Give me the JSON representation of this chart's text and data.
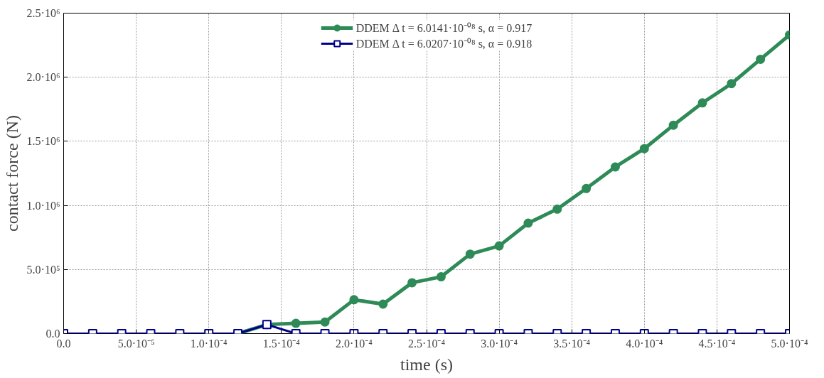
{
  "chart_data": {
    "type": "line",
    "xlabel": "time (s)",
    "ylabel": "contact force (N)",
    "x": [
      0,
      2e-05,
      4e-05,
      6e-05,
      8e-05,
      0.0001,
      0.00012,
      0.00014,
      0.00016,
      0.00018,
      0.0002,
      0.00022,
      0.00024,
      0.00026,
      0.00028,
      0.0003,
      0.00032,
      0.00034,
      0.00036,
      0.00038,
      0.0004,
      0.00042,
      0.00044,
      0.00046,
      0.00048,
      0.0005
    ],
    "series": [
      {
        "name": "DDEM Δ t = 6.0141·10⁻⁰⁸ s, α = 0.917",
        "color": "#2e8b57",
        "marker": "circle",
        "values": [
          null,
          null,
          null,
          null,
          null,
          null,
          0,
          70000,
          80000,
          90000,
          264000,
          230000,
          397000,
          443000,
          620000,
          684000,
          862000,
          971000,
          1132000,
          1300000,
          1443000,
          1626000,
          1800000,
          1950000,
          2140000,
          2330000
        ]
      },
      {
        "name": "DDEM Δ t = 6.0207·10⁻⁰⁸ s, α = 0.918",
        "color": "#00008b",
        "marker": "square",
        "values": [
          0,
          0,
          0,
          0,
          0,
          0,
          0,
          70000,
          0,
          0,
          0,
          0,
          0,
          0,
          0,
          0,
          0,
          0,
          0,
          0,
          0,
          0,
          0,
          0,
          0,
          0
        ]
      }
    ],
    "xlim": [
      0,
      0.0005
    ],
    "xticks": [
      {
        "value": 0,
        "label": "0.0"
      },
      {
        "value": 5e-05,
        "label": "5.0·10⁻⁵"
      },
      {
        "value": 0.0001,
        "label": "1.0·10⁻⁴"
      },
      {
        "value": 0.00015,
        "label": "1.5·10⁻⁴"
      },
      {
        "value": 0.0002,
        "label": "2.0·10⁻⁴"
      },
      {
        "value": 0.00025,
        "label": "2.5·10⁻⁴"
      },
      {
        "value": 0.0003,
        "label": "3.0·10⁻⁴"
      },
      {
        "value": 0.00035,
        "label": "3.5·10⁻⁴"
      },
      {
        "value": 0.0004,
        "label": "4.0·10⁻⁴"
      },
      {
        "value": 0.00045,
        "label": "4.5·10⁻⁴"
      },
      {
        "value": 0.0005,
        "label": "5.0·10⁻⁴"
      }
    ],
    "ylim": [
      0,
      2500000
    ],
    "yticks": [
      {
        "value": 0,
        "label": "0.0"
      },
      {
        "value": 500000,
        "label": "5.0·10⁵"
      },
      {
        "value": 1000000,
        "label": "1.0·10⁶"
      },
      {
        "value": 1500000,
        "label": "1.5·10⁶"
      },
      {
        "value": 2000000,
        "label": "2.0·10⁶"
      },
      {
        "value": 2500000,
        "label": "2.5·10⁶"
      }
    ],
    "grid": true,
    "legend": "top",
    "line_style": "solid"
  }
}
